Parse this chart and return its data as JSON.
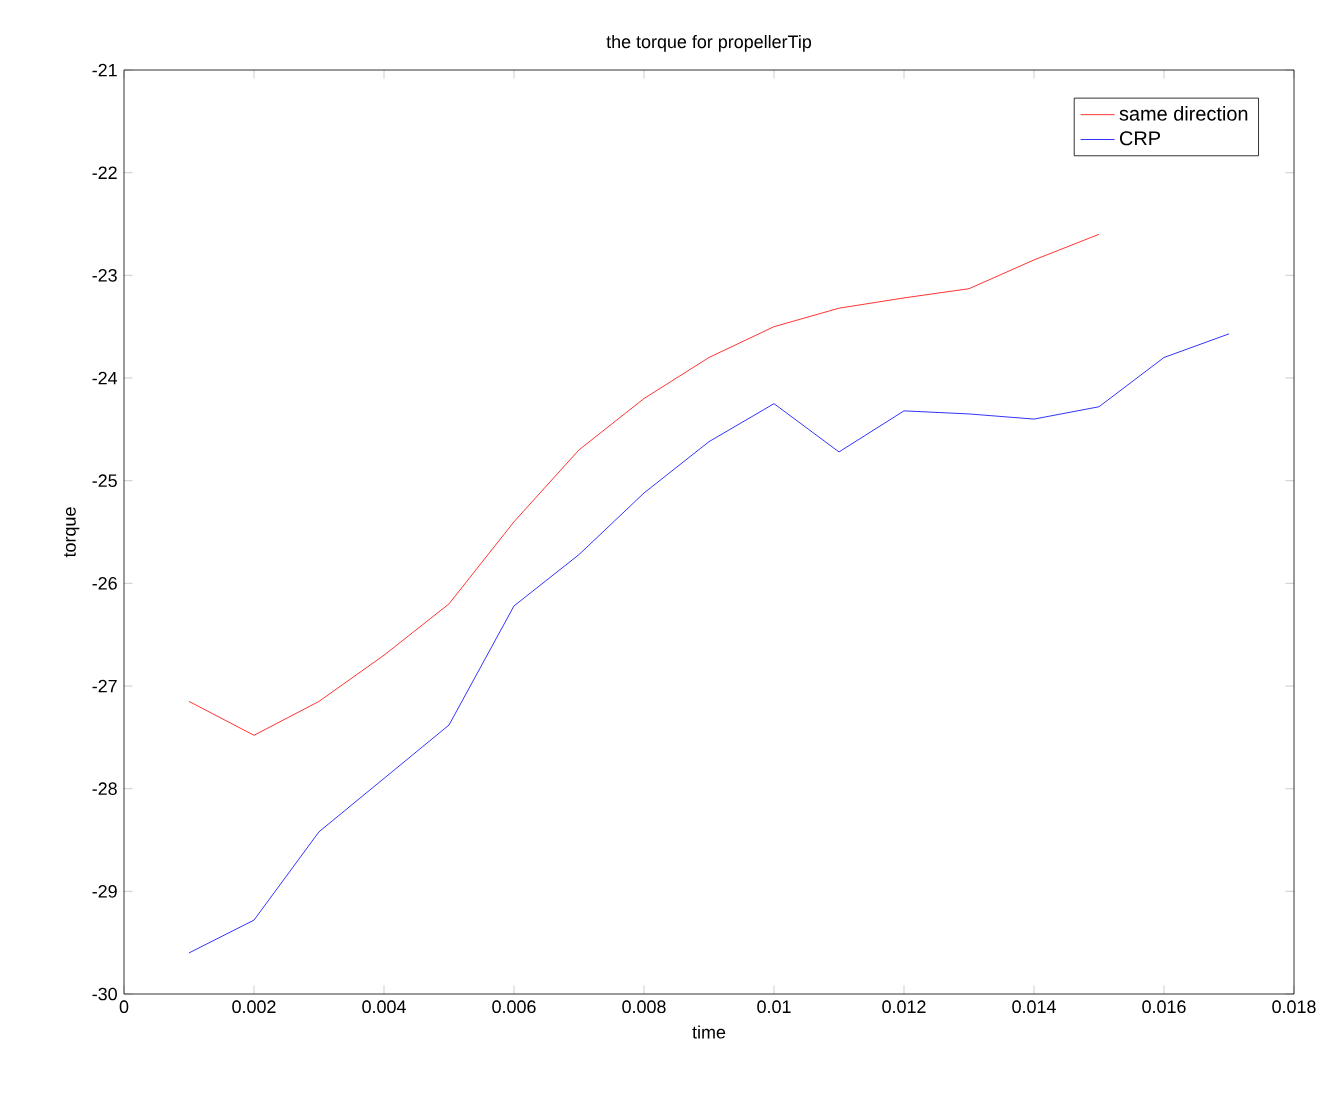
{
  "chart_data": {
    "type": "line",
    "title": "the torque for propellerTip",
    "xlabel": "time",
    "ylabel": "torque",
    "x": [
      0.001,
      0.002,
      0.003,
      0.004,
      0.005,
      0.006,
      0.007,
      0.008,
      0.009,
      0.01,
      0.011,
      0.012,
      0.013,
      0.014,
      0.015,
      0.016,
      0.017
    ],
    "series": [
      {
        "name": "same direction",
        "color": "#ff0000",
        "values": [
          -27.15,
          -27.48,
          -27.15,
          -26.7,
          -26.2,
          -25.4,
          -24.7,
          -24.2,
          -23.8,
          -23.5,
          -23.32,
          -23.22,
          -23.13,
          -22.85,
          -22.6,
          null,
          null
        ]
      },
      {
        "name": "CRP",
        "color": "#0000ff",
        "values": [
          -29.6,
          -29.28,
          -28.42,
          -27.9,
          -27.38,
          -26.22,
          -25.72,
          -25.12,
          -24.62,
          -24.25,
          -24.72,
          -24.32,
          -24.35,
          -24.4,
          -24.28,
          -23.8,
          -23.57
        ]
      }
    ],
    "xlim": [
      0,
      0.018
    ],
    "ylim": [
      -30,
      -21
    ],
    "xticks": [
      0,
      0.002,
      0.004,
      0.006,
      0.008,
      0.01,
      0.012,
      0.014,
      0.016,
      0.018
    ],
    "yticks": [
      -30,
      -29,
      -28,
      -27,
      -26,
      -25,
      -24,
      -23,
      -22,
      -21
    ],
    "grid": false,
    "legend": "top right",
    "marker": "none",
    "line_style": "solid"
  }
}
